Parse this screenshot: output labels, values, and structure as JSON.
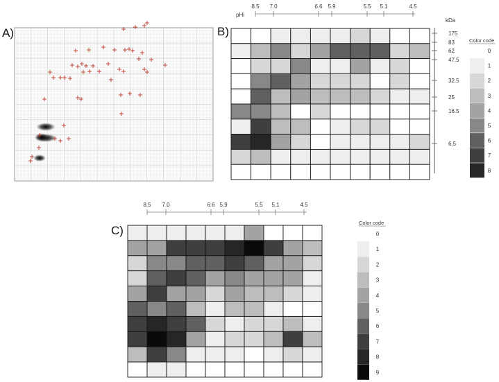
{
  "labels": {
    "a": "A)",
    "b": "B)",
    "c": "C)"
  },
  "panel_b": {
    "ph_label": "pHi",
    "ph_ticks": [
      "8.5",
      "7.0",
      "6.6",
      "5.9",
      "5.5",
      "5.1",
      "4.5"
    ],
    "kda_label": "kDa",
    "mw_ticks": [
      "175",
      "83",
      "62",
      "47.5",
      "32.5",
      "25",
      "16.5",
      "6.5"
    ],
    "color_code_title": "Color code",
    "color_code_values": [
      "0",
      "1",
      "2",
      "3",
      "4",
      "5",
      "6",
      "7",
      "8"
    ],
    "grid": [
      [
        0,
        0,
        1,
        1,
        1,
        1,
        2,
        1,
        0,
        0
      ],
      [
        1,
        3,
        5,
        2,
        4,
        6,
        6,
        6,
        2,
        3
      ],
      [
        0,
        2,
        2,
        5,
        1,
        1,
        4,
        1,
        2,
        0
      ],
      [
        0,
        5,
        6,
        4,
        2,
        2,
        2,
        0,
        2,
        0
      ],
      [
        0,
        6,
        3,
        4,
        3,
        3,
        3,
        2,
        1,
        1
      ],
      [
        5,
        5,
        3,
        0,
        2,
        0,
        0,
        0,
        0,
        0
      ],
      [
        1,
        7,
        3,
        3,
        0,
        1,
        2,
        2,
        0,
        0
      ],
      [
        7,
        8,
        4,
        2,
        0,
        1,
        1,
        1,
        1,
        2
      ],
      [
        2,
        3,
        1,
        1,
        1,
        1,
        1,
        1,
        1,
        1
      ],
      [
        0,
        0,
        0,
        0,
        0,
        0,
        0,
        0,
        0,
        0
      ]
    ]
  },
  "panel_c": {
    "ph_ticks": [
      "8.5",
      "7.0",
      "6.6",
      "5.9",
      "5.5",
      "5.1",
      "4.5"
    ],
    "color_code_title": "Color code",
    "color_code_values": [
      "0",
      "1",
      "2",
      "3",
      "4",
      "5",
      "6",
      "7",
      "8",
      "9"
    ],
    "grid": [
      [
        1,
        1,
        1,
        1,
        1,
        1,
        4,
        0,
        0,
        0
      ],
      [
        4,
        4,
        7,
        7,
        7,
        8,
        9,
        7,
        4,
        3
      ],
      [
        2,
        5,
        5,
        6,
        6,
        7,
        6,
        4,
        4,
        2
      ],
      [
        2,
        6,
        7,
        6,
        4,
        5,
        4,
        4,
        4,
        1
      ],
      [
        4,
        7,
        4,
        4,
        2,
        4,
        3,
        3,
        2,
        1
      ],
      [
        6,
        5,
        6,
        3,
        1,
        3,
        3,
        1,
        0,
        0
      ],
      [
        7,
        8,
        7,
        6,
        2,
        1,
        2,
        2,
        3,
        1
      ],
      [
        7,
        9,
        8,
        4,
        1,
        2,
        2,
        3,
        7,
        3
      ],
      [
        3,
        7,
        5,
        1,
        1,
        1,
        0,
        1,
        2,
        1
      ],
      [
        0,
        1,
        1,
        0,
        0,
        0,
        0,
        0,
        0,
        0
      ]
    ]
  },
  "colors": {
    "scale9": [
      "#ffffff",
      "#eeeeee",
      "#d7d7d7",
      "#bdbdbd",
      "#a3a3a3",
      "#888888",
      "#606060",
      "#3f3f3f",
      "#262626",
      "#0a0a0a"
    ],
    "marker": "#c0392b",
    "grid_line": "#c8c8c8"
  }
}
